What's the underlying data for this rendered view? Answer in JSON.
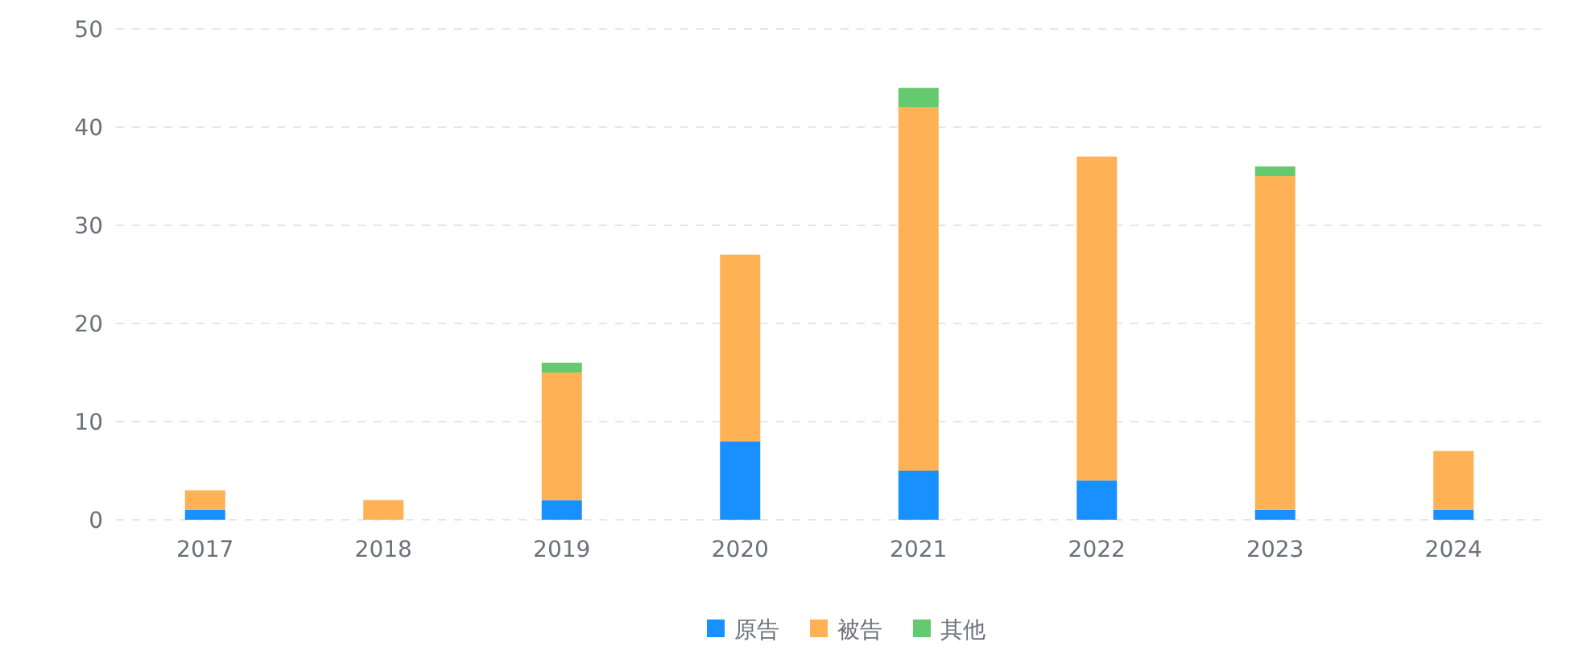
{
  "chart_data": {
    "type": "bar",
    "stacked": true,
    "categories": [
      "2017",
      "2018",
      "2019",
      "2020",
      "2021",
      "2022",
      "2023",
      "2024"
    ],
    "series": [
      {
        "name": "原告",
        "color": "#1890ff",
        "values": [
          1,
          0,
          2,
          8,
          5,
          4,
          1,
          1
        ]
      },
      {
        "name": "被告",
        "color": "#ffb155",
        "values": [
          2,
          2,
          13,
          19,
          37,
          33,
          34,
          6
        ]
      },
      {
        "name": "其他",
        "color": "#65c96f",
        "values": [
          0,
          0,
          1,
          0,
          2,
          0,
          1,
          0
        ]
      }
    ],
    "ylim": [
      0,
      50
    ],
    "yticks": [
      0,
      10,
      20,
      30,
      40,
      50
    ],
    "grid": "y",
    "legend": "bottom"
  }
}
